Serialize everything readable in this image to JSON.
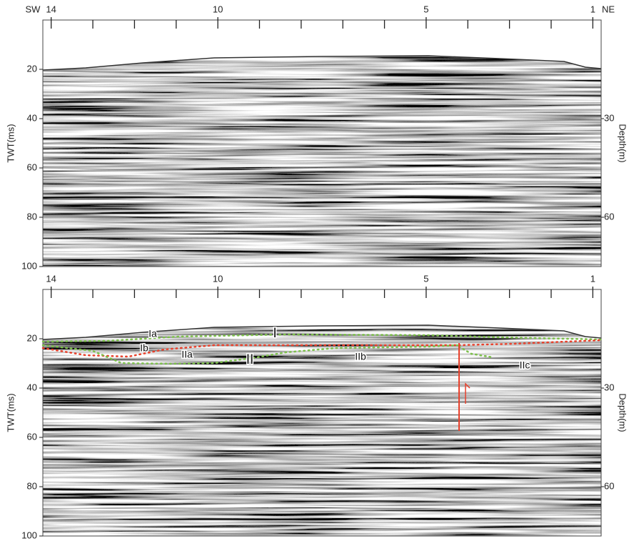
{
  "chart_data": [
    {
      "type": "seismic",
      "direction_left": "SW",
      "direction_right": "NE",
      "ylabel": "TWT(ms)",
      "y2label": "Depth(m)",
      "xlim": [
        14.2,
        0.8
      ],
      "xticks": [
        14,
        10,
        5,
        1
      ],
      "x_unlabeled_ticks": [
        13,
        12,
        11,
        9,
        8,
        7,
        6,
        4,
        3,
        2
      ],
      "ylim": [
        0,
        100
      ],
      "yticks": [
        20,
        40,
        60,
        80,
        100
      ],
      "y2lim": [
        0,
        75
      ],
      "y2ticks": [
        30,
        60
      ]
    },
    {
      "type": "seismic",
      "ylabel": "TWT(ms)",
      "y2label": "Depth(m)",
      "xlim": [
        14.2,
        0.8
      ],
      "xticks": [
        14,
        10,
        5,
        1
      ],
      "x_unlabeled_ticks": [
        13,
        12,
        11,
        9,
        8,
        7,
        6,
        4,
        3,
        2
      ],
      "ylim": [
        0,
        100
      ],
      "yticks": [
        20,
        40,
        60,
        80,
        100
      ],
      "y2lim": [
        0,
        75
      ],
      "y2ticks": [
        30,
        60
      ],
      "annotations": [
        "Ia",
        "I",
        "Ib",
        "IIa",
        "II",
        "IIb",
        "IIc"
      ]
    }
  ]
}
